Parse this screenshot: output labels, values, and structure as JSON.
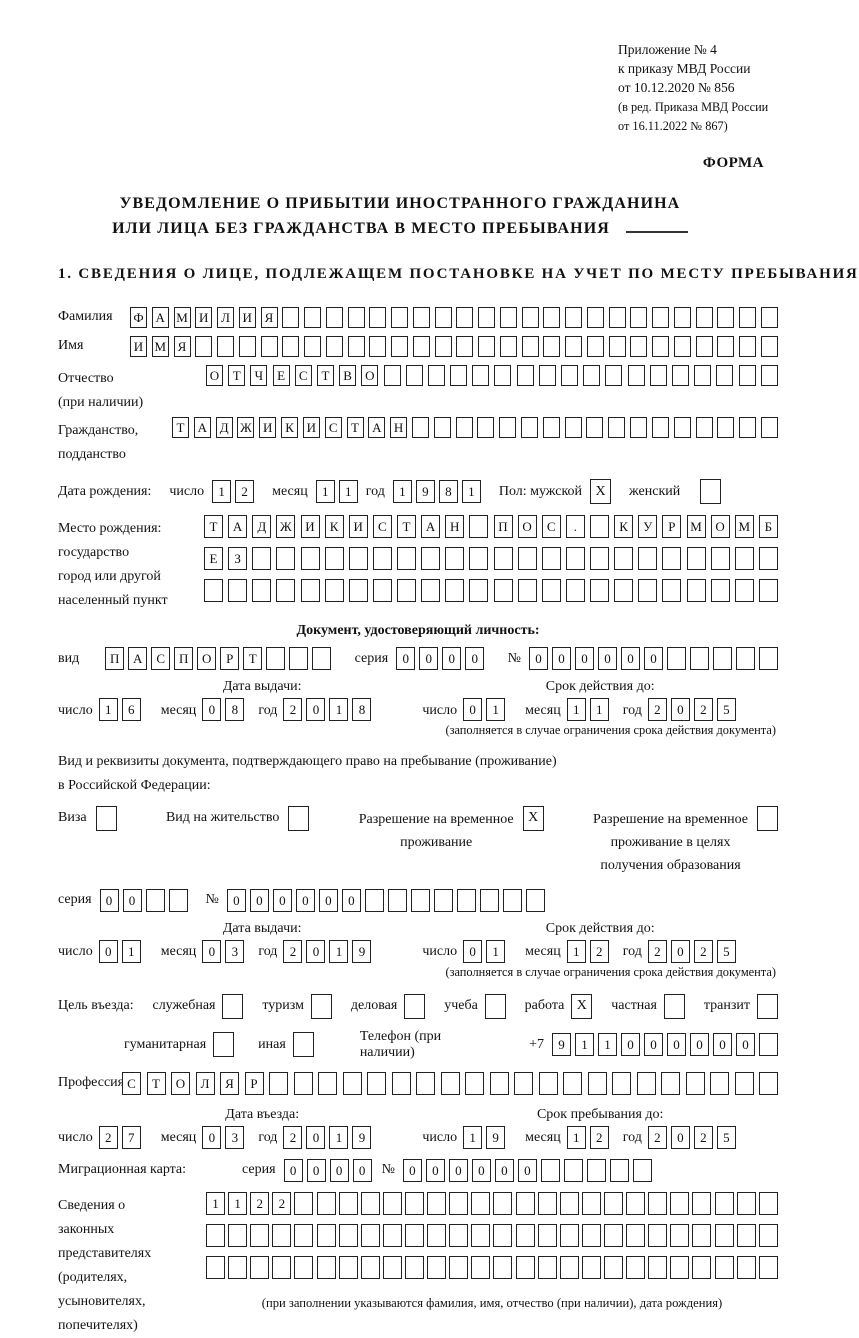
{
  "page": {
    "annex_lines": [
      "Приложение № 4",
      "к приказу МВД России",
      "от 10.12.2020 № 856"
    ],
    "amendment_lines": [
      "(в ред. Приказа МВД России",
      "от 16.11.2022 № 867)"
    ],
    "forma": "ФОРМА",
    "title_line1": "УВЕДОМЛЕНИЕ О ПРИБЫТИИ ИНОСТРАННОГО ГРАЖДАНИНА",
    "title_line2": "ИЛИ ЛИЦА БЕЗ ГРАЖДАНСТВА В МЕСТО ПРЕБЫВАНИЯ",
    "section1_heading": "1. СВЕДЕНИЯ О ЛИЦЕ, ПОДЛЕЖАЩЕМ ПОСТАНОВКЕ НА УЧЕТ ПО МЕСТУ ПРЕБЫВАНИЯ"
  },
  "labels": {
    "day": "число",
    "month": "месяц",
    "year": "год",
    "series": "серия",
    "number": "№",
    "issue_date": "Дата выдачи:",
    "valid_until": "Срок действия до:",
    "validity_note": "(заполняется в случае ограничения срока действия документа)"
  },
  "person": {
    "surname": {
      "label": "Фамилия",
      "boxes": {
        "value": "ФАМИЛИЯ",
        "cells": 30
      }
    },
    "firstname": {
      "label": "Имя",
      "boxes": {
        "value": "ИМЯ",
        "cells": 30
      }
    },
    "patronymic": {
      "label1": "Отчество",
      "label2": "(при наличии)",
      "boxes": {
        "value": "ОТЧЕСТВО",
        "cells": 26
      }
    },
    "citizenship": {
      "label1": "Гражданство,",
      "label2": "подданство",
      "boxes": {
        "value": "ТАДЖИКИСТАН",
        "cells": 28
      }
    },
    "birth": {
      "label": "Дата рождения:",
      "day": "12",
      "month": "11",
      "year": "1981",
      "sex_label": "Пол: мужской",
      "male": "X",
      "female_label": "женский",
      "female": ""
    },
    "birthplace": {
      "label1": "Место рождения:",
      "label2": "государство",
      "label3": "город или другой",
      "label4": "населенный пункт",
      "row1": {
        "value": "ТАДЖИКИСТАН ПОС. КУРМОМБ",
        "cells": 24
      },
      "row2": {
        "value": "ЕЗ",
        "cells": 24
      },
      "row3": {
        "value": "",
        "cells": 24
      }
    }
  },
  "identity_doc": {
    "heading": "Документ, удостоверяющий личность:",
    "kind_label": "вид",
    "kind": {
      "value": "ПАСПОРТ",
      "cells": 10
    },
    "series": {
      "value": "0000",
      "cells": 4
    },
    "number": {
      "value": "000000",
      "cells": 11
    },
    "issue": {
      "day": "16",
      "month": "08",
      "year": "2018"
    },
    "valid": {
      "day": "01",
      "month": "11",
      "year": "2025"
    }
  },
  "residence_doc": {
    "intro1": "Вид и реквизиты документа, подтверждающего право на пребывание (проживание)",
    "intro2": "в Российской Федерации:",
    "visa_label": "Виза",
    "visa": "",
    "permit_label": "Вид на жительство",
    "permit": "",
    "temp_label1": "Разрешение на временное",
    "temp_label2": "проживание",
    "temp": "X",
    "edu_label1": "Разрешение на временное",
    "edu_label2": "проживание в целях",
    "edu_label3": "получения образования",
    "edu": "",
    "series": {
      "value": "00",
      "cells": 4
    },
    "number": {
      "value": "000000",
      "cells": 14
    },
    "issue": {
      "day": "01",
      "month": "03",
      "year": "2019"
    },
    "valid": {
      "day": "01",
      "month": "12",
      "year": "2025"
    }
  },
  "purpose": {
    "label": "Цель въезда:",
    "options": [
      {
        "label": "служебная",
        "checked": ""
      },
      {
        "label": "туризм",
        "checked": ""
      },
      {
        "label": "деловая",
        "checked": ""
      },
      {
        "label": "учеба",
        "checked": ""
      },
      {
        "label": "работа",
        "checked": "X"
      },
      {
        "label": "частная",
        "checked": ""
      },
      {
        "label": "транзит",
        "checked": ""
      }
    ],
    "options2": [
      {
        "label": "гуманитарная",
        "checked": ""
      },
      {
        "label": "иная",
        "checked": ""
      }
    ],
    "phone_label": "Телефон (при наличии)",
    "phone_prefix": "+7",
    "phone": {
      "value": "911000000",
      "cells": 10
    }
  },
  "profession": {
    "label": "Профессия",
    "boxes": {
      "value": "СТОЛЯР",
      "cells": 27
    }
  },
  "entry": {
    "entry_title": "Дата въезда:",
    "entry": {
      "day": "27",
      "month": "03",
      "year": "2019"
    },
    "stay_title": "Срок пребывания до:",
    "stay": {
      "day": "19",
      "month": "12",
      "year": "2025"
    }
  },
  "migration_card": {
    "label": "Миграционная карта:",
    "series": {
      "value": "0000",
      "cells": 4
    },
    "number": {
      "value": "000000",
      "cells": 11
    }
  },
  "representatives": {
    "label1": "Сведения о",
    "label2": "законных",
    "label3": "представителях",
    "label4": "(родителях,",
    "label5": "усыновителях,",
    "label6": "попечителях)",
    "row1": {
      "value": "1122",
      "cells": 26
    },
    "row2": {
      "value": "",
      "cells": 26
    },
    "row3": {
      "value": "",
      "cells": 26
    },
    "caption": "(при заполнении указываются фамилия, имя, отчество (при наличии), дата рождения)"
  }
}
